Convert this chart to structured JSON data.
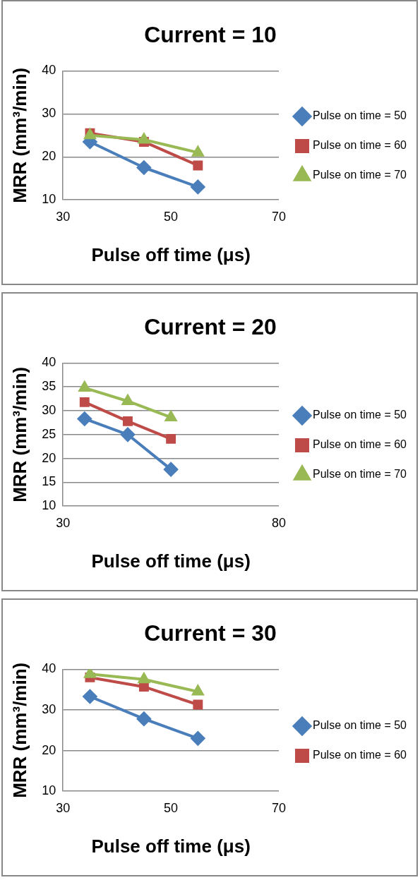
{
  "chart_data": [
    {
      "type": "line",
      "title": "Current = 10",
      "xlabel": "Pulse off time (μs)",
      "ylabel": "MRR (mm³/min)",
      "xlim": [
        30,
        70
      ],
      "xticks": [
        30,
        50,
        70
      ],
      "ylim": [
        10,
        40
      ],
      "yticks": [
        10,
        20,
        30,
        40
      ],
      "grid": "y",
      "legend": "right",
      "line_style": "solid",
      "series": [
        {
          "name": "Pulse on time = 50",
          "color": "#4a7ebb",
          "marker": "diamond",
          "x": [
            35,
            45,
            55
          ],
          "values": [
            23.5,
            17.5,
            13
          ]
        },
        {
          "name": "Pulse on time = 60",
          "color": "#be4b48",
          "marker": "square",
          "x": [
            35,
            45,
            55
          ],
          "values": [
            25.5,
            23.5,
            18
          ]
        },
        {
          "name": "Pulse on time = 70",
          "color": "#98b954",
          "marker": "triangle",
          "x": [
            35,
            45,
            55
          ],
          "values": [
            25,
            24,
            21
          ]
        }
      ]
    },
    {
      "type": "line",
      "title": "Current = 20",
      "xlabel": "Pulse off time (μs)",
      "ylabel": "MRR (mm³/min)",
      "xlim": [
        30,
        80
      ],
      "xticks": [
        30,
        80
      ],
      "ylim": [
        10,
        40
      ],
      "yticks": [
        10,
        15,
        20,
        25,
        30,
        35,
        40
      ],
      "grid": "y",
      "legend": "right",
      "line_style": "solid",
      "series": [
        {
          "name": "Pulse on time = 50",
          "color": "#4a7ebb",
          "marker": "diamond",
          "x": [
            35,
            45,
            55
          ],
          "values": [
            28.3,
            25,
            17.7
          ]
        },
        {
          "name": "Pulse on time = 60",
          "color": "#be4b48",
          "marker": "square",
          "x": [
            35,
            45,
            55
          ],
          "values": [
            31.8,
            27.8,
            24.1
          ]
        },
        {
          "name": "Pulse on time = 70",
          "color": "#98b954",
          "marker": "triangle",
          "x": [
            35,
            45,
            55
          ],
          "values": [
            34.8,
            32,
            28.6
          ]
        }
      ]
    },
    {
      "type": "line",
      "title": "Current = 30",
      "xlabel": "Pulse off time (μs)",
      "ylabel": "MRR (mm³/min)",
      "xlim": [
        30,
        70
      ],
      "xticks": [
        30,
        50,
        70
      ],
      "ylim": [
        10,
        40
      ],
      "yticks": [
        10,
        20,
        30,
        40
      ],
      "grid": "y",
      "legend": "right",
      "line_style": "solid",
      "series": [
        {
          "name": "Pulse on time = 50",
          "color": "#4a7ebb",
          "marker": "diamond",
          "x": [
            35,
            45,
            55
          ],
          "values": [
            33.3,
            27.8,
            23
          ]
        },
        {
          "name": "Pulse on time = 60",
          "color": "#be4b48",
          "marker": "square",
          "x": [
            35,
            45,
            55
          ],
          "values": [
            38,
            35.7,
            31.3
          ]
        },
        {
          "color": "#98b954",
          "marker": "triangle",
          "x": [
            35,
            45,
            55
          ],
          "values": [
            38.8,
            37.5,
            34.5
          ]
        }
      ]
    }
  ]
}
